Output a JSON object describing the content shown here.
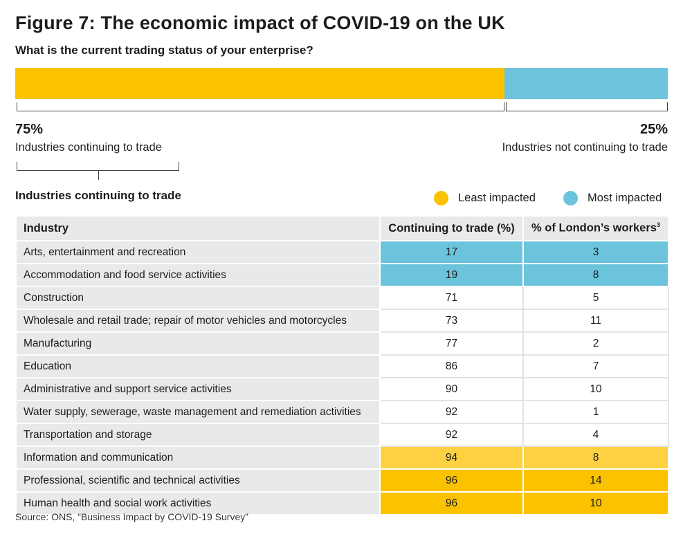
{
  "title": "Figure 7: The economic impact of COVID-19 on the UK",
  "subtitle": "What is the current trading status of your enterprise?",
  "trading_status": {
    "continuing_pct": "75%",
    "continuing_label": "Industries continuing to trade",
    "not_continuing_pct": "25%",
    "not_continuing_label": "Industries not continuing to trade",
    "continuing_share": 0.75,
    "colors": {
      "continuing": "#fbc200",
      "not_continuing": "#6cc3dc"
    }
  },
  "section_title": "Industries continuing to trade",
  "legend": {
    "least": "Least impacted",
    "most": "Most impacted",
    "least_color": "#fbc200",
    "most_color": "#6cc3dc"
  },
  "table": {
    "headers": [
      "Industry",
      "Continuing to trade (%)",
      "% of London’s workers"
    ],
    "header_footnote": "3",
    "rows": [
      {
        "industry": "Arts, entertainment and recreation",
        "continuing": "17",
        "workers": "3",
        "impact": "most"
      },
      {
        "industry": "Accommodation and food service activities",
        "continuing": "19",
        "workers": "8",
        "impact": "most"
      },
      {
        "industry": "Construction",
        "continuing": "71",
        "workers": "5",
        "impact": "none"
      },
      {
        "industry": "Wholesale and retail trade; repair of motor vehicles and motorcycles",
        "continuing": "73",
        "workers": "11",
        "impact": "none"
      },
      {
        "industry": "Manufacturing",
        "continuing": "77",
        "workers": "2",
        "impact": "none"
      },
      {
        "industry": "Education",
        "continuing": "86",
        "workers": "7",
        "impact": "none"
      },
      {
        "industry": "Administrative and support service activities",
        "continuing": "90",
        "workers": "10",
        "impact": "none"
      },
      {
        "industry": "Water supply, sewerage, waste management and remediation activities",
        "continuing": "92",
        "workers": "1",
        "impact": "none"
      },
      {
        "industry": "Transportation and storage",
        "continuing": "92",
        "workers": "4",
        "impact": "none"
      },
      {
        "industry": "Information and communication",
        "continuing": "94",
        "workers": "8",
        "impact": "least"
      },
      {
        "industry": "Professional, scientific and technical activities",
        "continuing": "96",
        "workers": "14",
        "impact": "least"
      },
      {
        "industry": "Human health and social work activities",
        "continuing": "96",
        "workers": "10",
        "impact": "least"
      }
    ]
  },
  "source": "Source: ONS, “Business Impact by COVID-19 Survey”",
  "chart_data": {
    "type": "table",
    "title": "Figure 7: The economic impact of COVID-19 on the UK",
    "stacked_bar": {
      "categories": [
        "Industries continuing to trade",
        "Industries not continuing to trade"
      ],
      "values": [
        75,
        25
      ]
    },
    "columns": [
      "Industry",
      "Continuing to trade (%)",
      "% of London’s workers"
    ],
    "rows": [
      [
        "Arts, entertainment and recreation",
        17,
        3
      ],
      [
        "Accommodation and food service activities",
        19,
        8
      ],
      [
        "Construction",
        71,
        5
      ],
      [
        "Wholesale and retail trade; repair of motor vehicles and motorcycles",
        73,
        11
      ],
      [
        "Manufacturing",
        77,
        2
      ],
      [
        "Education",
        86,
        7
      ],
      [
        "Administrative and support service activities",
        90,
        10
      ],
      [
        "Water supply, sewerage, waste management and remediation activities",
        92,
        1
      ],
      [
        "Transportation and storage",
        92,
        4
      ],
      [
        "Information and communication",
        94,
        8
      ],
      [
        "Professional, scientific and technical activities",
        96,
        14
      ],
      [
        "Human health and social work activities",
        96,
        10
      ]
    ]
  }
}
